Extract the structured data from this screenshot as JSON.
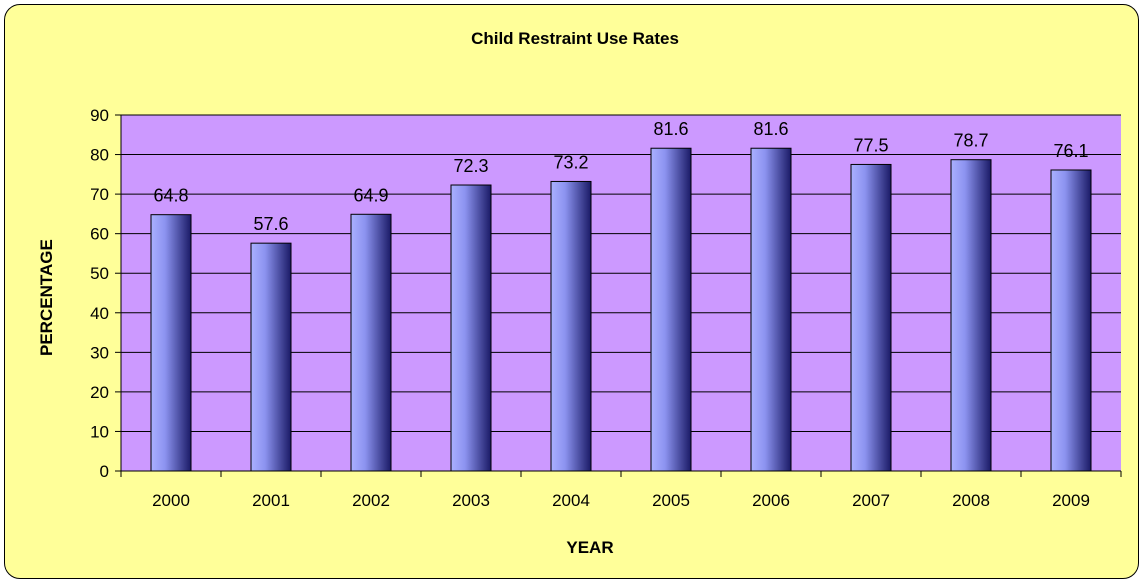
{
  "chart_data": {
    "type": "bar",
    "title": "Child Restraint Use Rates",
    "xlabel": "YEAR",
    "ylabel": "PERCENTAGE",
    "categories": [
      "2000",
      "2001",
      "2002",
      "2003",
      "2004",
      "2005",
      "2006",
      "2007",
      "2008",
      "2009"
    ],
    "values": [
      64.8,
      57.6,
      64.9,
      72.3,
      73.2,
      81.6,
      81.6,
      77.5,
      78.7,
      76.1
    ],
    "data_labels": [
      "64.8",
      "57.6",
      "64.9",
      "72.3",
      "73.2",
      "81.6",
      "81.6",
      "77.5",
      "78.7",
      "76.1"
    ],
    "ylim": [
      0,
      90
    ],
    "yticks": [
      "0",
      "10",
      "20",
      "30",
      "40",
      "50",
      "60",
      "70",
      "80",
      "90"
    ],
    "grid": true,
    "legend": "none",
    "colors": {
      "chart_background": "#ffff99",
      "plot_background": "#cc99ff",
      "bar_light": "#aab0ff",
      "bar_dark": "#1a1a66",
      "gridline": "#000000"
    }
  }
}
